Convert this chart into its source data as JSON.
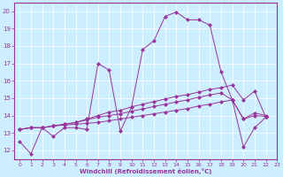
{
  "xlabel": "Windchill (Refroidissement éolien,°C)",
  "bg_color": "#cceeff",
  "line_color": "#993399",
  "xlim": [
    -0.5,
    23
  ],
  "ylim": [
    11.5,
    20.5
  ],
  "xticks": [
    0,
    1,
    2,
    3,
    4,
    5,
    6,
    7,
    8,
    9,
    10,
    11,
    12,
    13,
    14,
    15,
    16,
    17,
    18,
    19,
    20,
    21,
    22,
    23
  ],
  "yticks": [
    12,
    13,
    14,
    15,
    16,
    17,
    18,
    19,
    20
  ],
  "series1": [
    12.5,
    11.8,
    13.3,
    12.8,
    13.3,
    13.3,
    13.2,
    17.0,
    16.6,
    13.1,
    14.5,
    17.8,
    18.3,
    19.7,
    19.95,
    19.5,
    19.5,
    19.2,
    16.5,
    14.9,
    12.2,
    13.3,
    13.9
  ],
  "series2": [
    13.2,
    13.3,
    13.3,
    13.4,
    13.5,
    13.6,
    13.8,
    14.0,
    14.2,
    14.3,
    14.5,
    14.65,
    14.8,
    14.95,
    15.1,
    15.2,
    15.35,
    15.5,
    15.6,
    15.75,
    14.9,
    15.4,
    13.9
  ],
  "series3": [
    13.2,
    13.3,
    13.3,
    13.4,
    13.5,
    13.6,
    13.75,
    13.9,
    14.0,
    14.1,
    14.25,
    14.38,
    14.52,
    14.65,
    14.78,
    14.9,
    15.05,
    15.18,
    15.3,
    14.9,
    13.8,
    14.15,
    14.0
  ],
  "series4": [
    13.2,
    13.3,
    13.3,
    13.4,
    13.45,
    13.5,
    13.55,
    13.6,
    13.7,
    13.8,
    13.9,
    14.0,
    14.1,
    14.2,
    14.3,
    14.4,
    14.55,
    14.65,
    14.78,
    14.9,
    13.8,
    14.0,
    13.95
  ],
  "grid_color": "#ffffff",
  "marker": "D",
  "marker_size": 2.5,
  "lw": 0.7
}
